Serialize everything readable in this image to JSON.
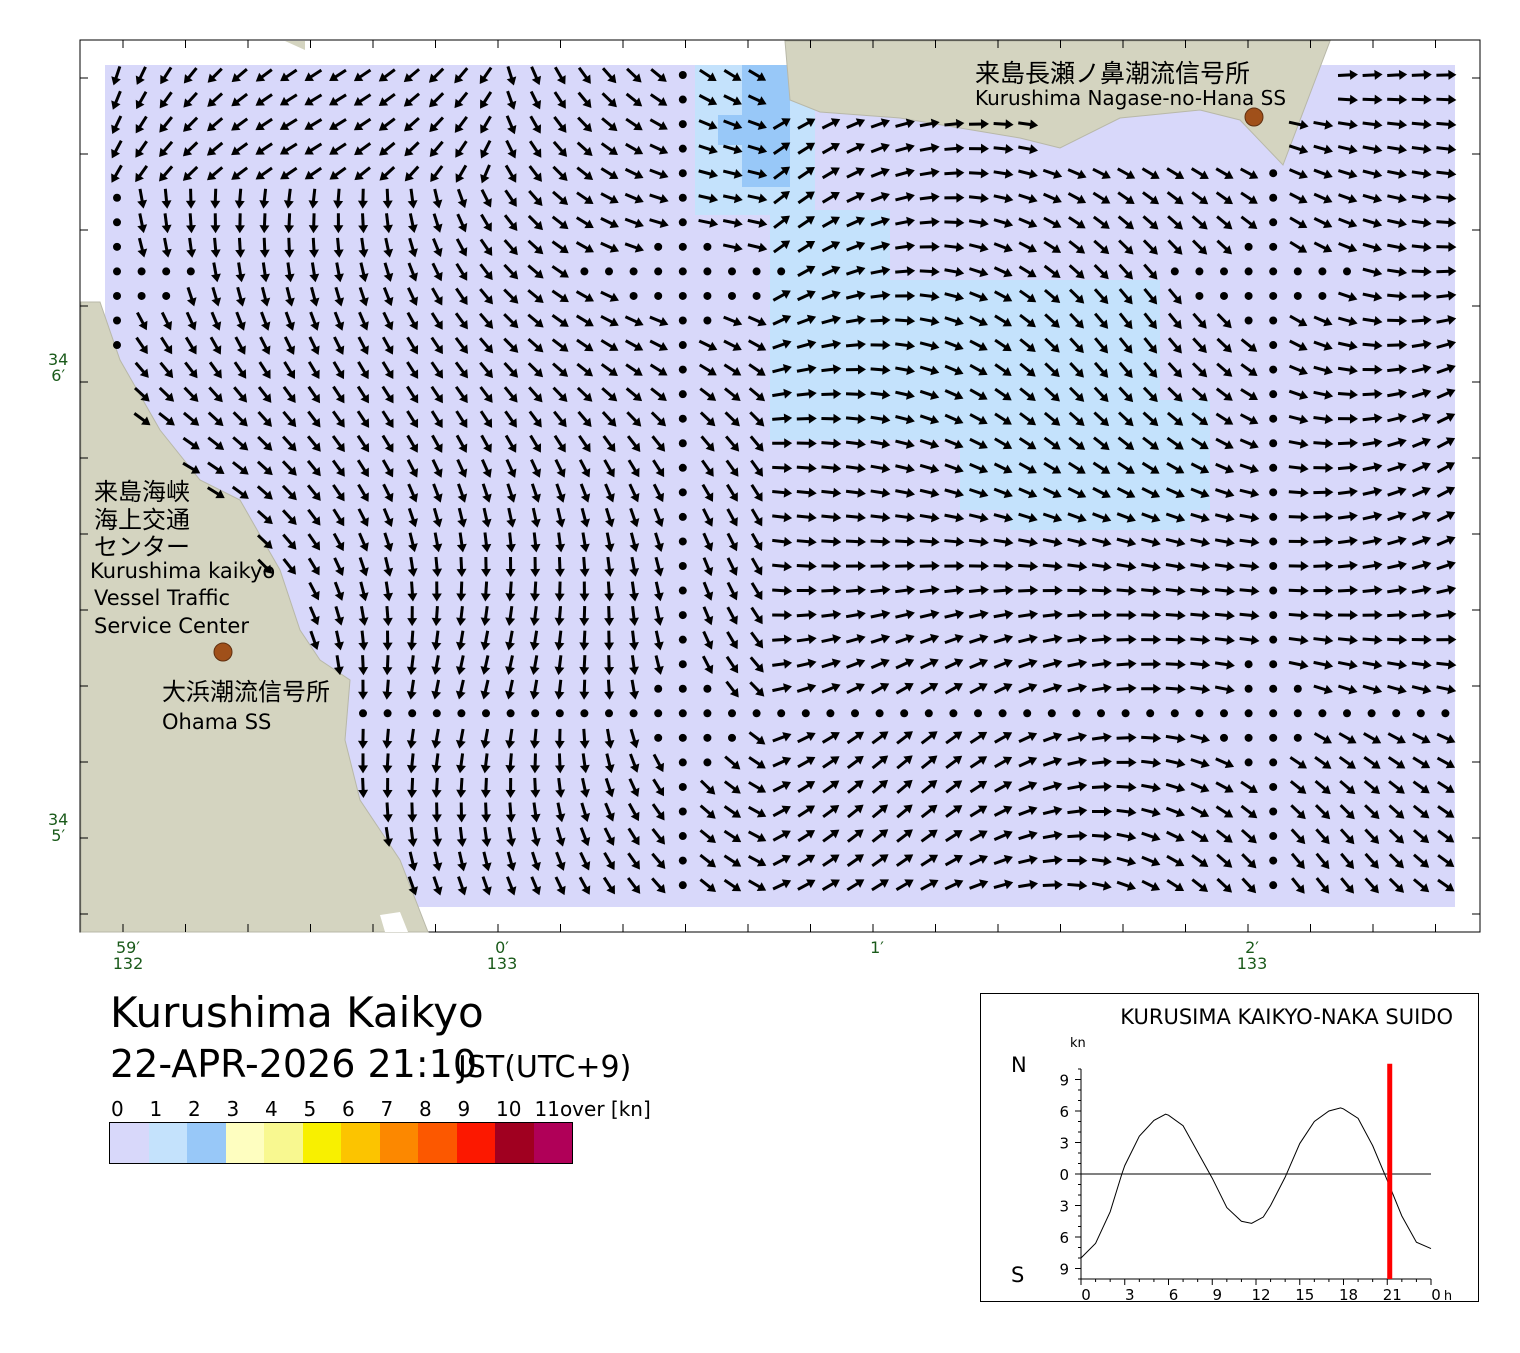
{
  "title": "Kurushima Kaikyo",
  "datetime": "22-APR-2026 21:10",
  "timezone": "JST(UTC+9)",
  "map": {
    "colors": {
      "water": "#d8d8fa",
      "land": "#d4d4c0",
      "speed_1_2": "#c4e2fc",
      "speed_2_3": "#98c8f8",
      "station": "#a0501a"
    },
    "lat_labels": [
      {
        "deg": "34",
        "min": "6′"
      },
      {
        "deg": "34",
        "min": "5′"
      }
    ],
    "lon_labels": [
      {
        "min": "59′",
        "deg": "132"
      },
      {
        "min": "0′",
        "deg": "133"
      },
      {
        "min": "1′",
        "deg": ""
      },
      {
        "min": "2′",
        "deg": "133"
      }
    ],
    "places": {
      "nagase_jp": "来島長瀬ノ鼻潮流信号所",
      "nagase_en": "Kurushima Nagase-no-Hana SS",
      "vtc_jp_1": "来島海峡",
      "vtc_jp_2": "海上交通",
      "vtc_jp_3": "センター",
      "vtc_en_1": "Kurushima kaikyo",
      "vtc_en_2": "Vessel Traffic",
      "vtc_en_3": "Service Center",
      "ohama_jp": "大浜潮流信号所",
      "ohama_en": "Ohama SS"
    }
  },
  "legend": {
    "labels": [
      "0",
      "1",
      "2",
      "3",
      "4",
      "5",
      "6",
      "7",
      "8",
      "9",
      "10",
      "11over [kn]"
    ],
    "colors": [
      "#d8d8fa",
      "#c4e2fc",
      "#98c8f8",
      "#fefec0",
      "#f8f890",
      "#f8f000",
      "#fcc400",
      "#fc8800",
      "#fc5800",
      "#fc1800",
      "#a00020",
      "#b00058"
    ]
  },
  "chart_data": {
    "type": "line",
    "title": "KURUSIMA KAIKYO-NAKA SUIDO",
    "ylabel": "kn",
    "y_top_label": "N",
    "y_bottom_label": "S",
    "xlim": [
      0,
      24
    ],
    "ylim": [
      -10,
      10
    ],
    "x_unit": "h",
    "x_ticks": [
      "0",
      "3",
      "6",
      "9",
      "12",
      "15",
      "18",
      "21",
      "0"
    ],
    "y_ticks": [
      "9",
      "6",
      "3",
      "0",
      "3",
      "6",
      "9"
    ],
    "y_tick_values": [
      9,
      6,
      3,
      0,
      -3,
      -6,
      -9
    ],
    "current_time_h": 21.17,
    "current_time_color": "#ff0000",
    "x": [
      0,
      1,
      2,
      2.8,
      3,
      4,
      5,
      5.8,
      6,
      7,
      8,
      9,
      10,
      11,
      11.7,
      12.5,
      13,
      14,
      15,
      16,
      17,
      17.8,
      18,
      19,
      20,
      21,
      22,
      23,
      24
    ],
    "values": [
      -8,
      -6.6,
      -3.6,
      0,
      0.8,
      3.6,
      5.1,
      5.7,
      5.6,
      4.6,
      2.1,
      -0.4,
      -3.2,
      -4.5,
      -4.7,
      -4.1,
      -3,
      -0.3,
      2.9,
      5,
      6,
      6.3,
      6.2,
      5.3,
      2.7,
      -0.6,
      -4,
      -6.5,
      -7.1
    ]
  }
}
